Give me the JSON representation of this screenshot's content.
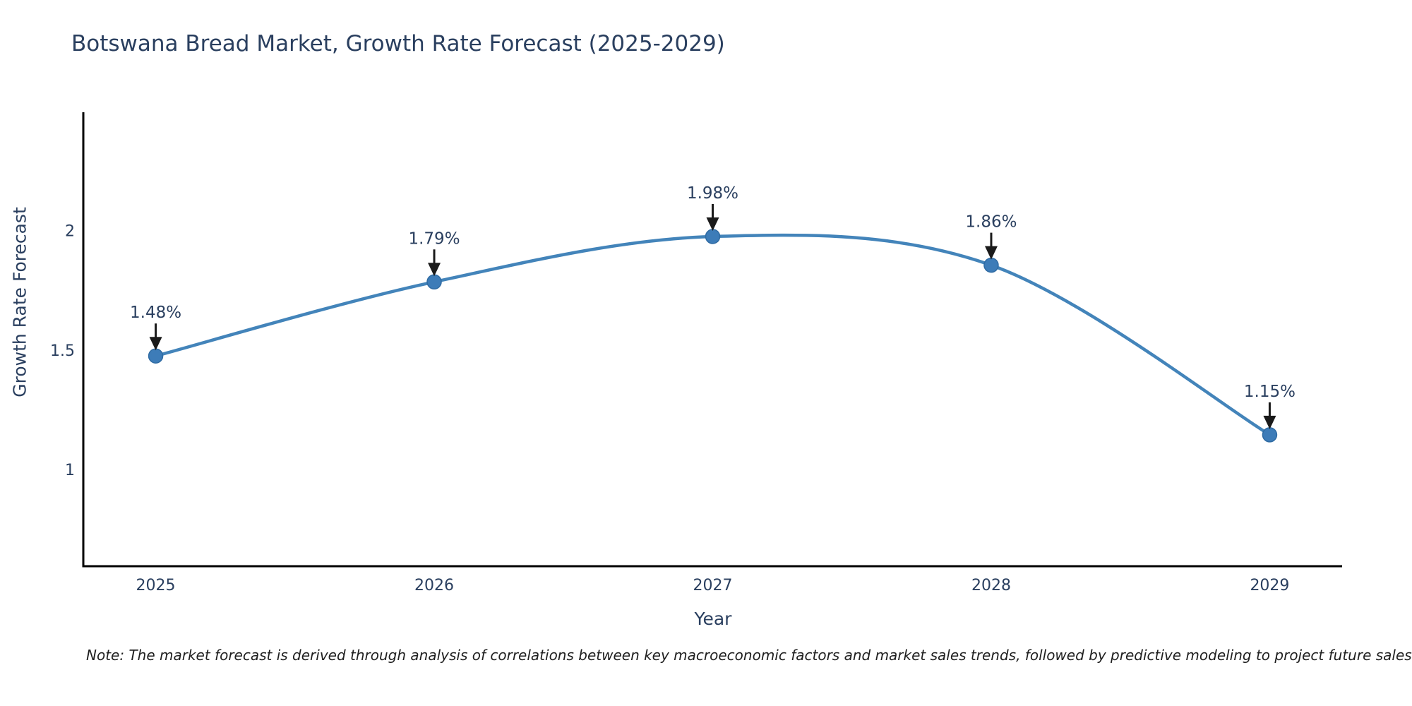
{
  "note": "Note: The market forecast is derived through analysis of correlations between key macroeconomic factors and market sales trends, followed by predictive modeling to project future sales",
  "chart_data": {
    "type": "line",
    "title": "Botswana Bread Market, Growth Rate Forecast (2025-2029)",
    "xlabel": "Year",
    "ylabel": "Growth Rate Forecast",
    "line_shape": "spline",
    "grid": false,
    "legend": "none",
    "x": [
      2025,
      2026,
      2027,
      2028,
      2029
    ],
    "y": [
      1.48,
      1.79,
      1.98,
      1.86,
      1.15
    ],
    "point_labels": [
      "1.48%",
      "1.79%",
      "1.98%",
      "1.86%",
      "1.15%"
    ],
    "xtick_labels": [
      "2025",
      "2026",
      "2027",
      "2028",
      "2029"
    ],
    "yticks": [
      1,
      1.5,
      2
    ],
    "ytick_labels": [
      "1",
      "1.5",
      "2"
    ],
    "xlim": [
      2024.74,
      2029.26
    ],
    "ylim": [
      0.6,
      2.5
    ],
    "colors": {
      "line": "#4384ba",
      "marker_fill": "#3d7cb8",
      "marker_edge": "#2f6ba3",
      "arrow": "#1a1a1a",
      "text": "#2a3f5f",
      "axis": "#000000"
    }
  }
}
